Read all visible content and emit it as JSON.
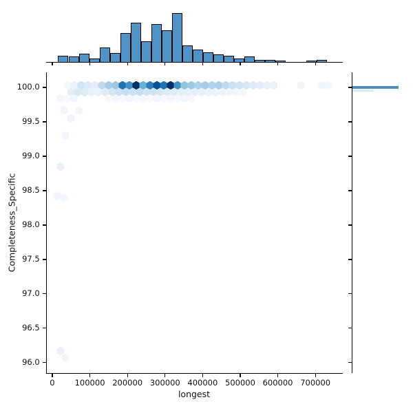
{
  "figure": {
    "background": "#ffffff",
    "xlabel": "longest",
    "ylabel": "Completeness_Specific"
  },
  "chart_data": {
    "type": "hexbin-joint",
    "title": "",
    "xlabel": "longest",
    "ylabel": "Completeness_Specific",
    "grid": false,
    "legend": "none",
    "colormap": "Blues",
    "xlim": [
      -17000,
      773000
    ],
    "ylim": [
      95.85,
      100.22
    ],
    "x_ticks": [
      0,
      100000,
      200000,
      300000,
      400000,
      500000,
      600000,
      700000
    ],
    "x_tick_labels": [
      "0",
      "100000",
      "200000",
      "300000",
      "400000",
      "500000",
      "600000",
      "700000"
    ],
    "y_ticks": [
      100.0,
      99.5,
      99.0,
      98.5,
      98.0,
      97.5,
      97.0,
      96.5,
      96.0
    ],
    "y_tick_labels": [
      "100.0",
      "99.5",
      "99.0",
      "98.5",
      "98.0",
      "97.5",
      "97.0",
      "96.5",
      "96.0"
    ],
    "hexes": [
      [
        40300,
        100.03,
        "#f3f8fd"
      ],
      [
        58600,
        100.03,
        "#e9f2fa"
      ],
      [
        76900,
        100.03,
        "#cfe3f3"
      ],
      [
        95200,
        100.03,
        "#dbeaf6"
      ],
      [
        113600,
        100.03,
        "#e4eef8"
      ],
      [
        131900,
        100.03,
        "#c3daee"
      ],
      [
        150200,
        100.03,
        "#a8cce6"
      ],
      [
        168500,
        100.03,
        "#9fc7e3"
      ],
      [
        186800,
        100.03,
        "#2171b5"
      ],
      [
        205100,
        100.03,
        "#4292c6"
      ],
      [
        223400,
        100.03,
        "#08306b"
      ],
      [
        241800,
        100.03,
        "#6baed6"
      ],
      [
        260100,
        100.03,
        "#2e7db9"
      ],
      [
        278400,
        100.03,
        "#08519c"
      ],
      [
        296700,
        100.03,
        "#2171b5"
      ],
      [
        315000,
        100.03,
        "#08306b"
      ],
      [
        333300,
        100.03,
        "#4292c6"
      ],
      [
        351600,
        100.03,
        "#93c4de"
      ],
      [
        370000,
        100.03,
        "#9ac9e4"
      ],
      [
        388300,
        100.03,
        "#aed1e9"
      ],
      [
        406600,
        100.03,
        "#a5cde7"
      ],
      [
        424900,
        100.03,
        "#b0d3ea"
      ],
      [
        443200,
        100.03,
        "#abd0e8"
      ],
      [
        461500,
        100.03,
        "#c0daef"
      ],
      [
        479800,
        100.03,
        "#cbe1f2"
      ],
      [
        498200,
        100.03,
        "#cfe3f3"
      ],
      [
        516500,
        100.03,
        "#d5e7f4"
      ],
      [
        534800,
        100.03,
        "#dcebf6"
      ],
      [
        553100,
        100.03,
        "#e2eef8"
      ],
      [
        571400,
        100.03,
        "#e7f1fa"
      ],
      [
        589700,
        100.03,
        "#e9f2fa"
      ],
      [
        661300,
        100.03,
        "#eef5fb"
      ],
      [
        716200,
        100.03,
        "#f0f6fc"
      ],
      [
        734600,
        100.03,
        "#f1f7fc"
      ],
      [
        49500,
        99.93,
        "#e4eff8"
      ],
      [
        67800,
        99.93,
        "#d9e8f5"
      ],
      [
        86100,
        99.93,
        "#dcebf6"
      ],
      [
        104400,
        99.93,
        "#e6f0f9"
      ],
      [
        122700,
        99.93,
        "#e9f2fa"
      ],
      [
        141100,
        99.93,
        "#dfecf7"
      ],
      [
        159400,
        99.93,
        "#d4e6f4"
      ],
      [
        177700,
        99.93,
        "#cce1f2"
      ],
      [
        196000,
        99.93,
        "#c9def0"
      ],
      [
        214300,
        99.93,
        "#cce1f2"
      ],
      [
        232600,
        99.93,
        "#c9def0"
      ],
      [
        251000,
        99.93,
        "#cfe3f3"
      ],
      [
        269300,
        99.93,
        "#d2e4f3"
      ],
      [
        287600,
        99.93,
        "#d7e7f5"
      ],
      [
        305900,
        99.93,
        "#dcebf6"
      ],
      [
        324200,
        99.93,
        "#dfecf7"
      ],
      [
        342500,
        99.93,
        "#e2eef8"
      ],
      [
        360900,
        99.93,
        "#e4eff8"
      ],
      [
        379200,
        99.93,
        "#e6f0f9"
      ],
      [
        397500,
        99.93,
        "#e9f2fa"
      ],
      [
        415800,
        99.93,
        "#ebf3fb"
      ],
      [
        434100,
        99.93,
        "#edf4fb"
      ],
      [
        452400,
        99.93,
        "#eef5fb"
      ],
      [
        470800,
        99.93,
        "#f0f6fc"
      ],
      [
        489100,
        99.93,
        "#f1f7fc"
      ],
      [
        507400,
        99.93,
        "#f4f8fd"
      ],
      [
        22000,
        99.84,
        "#f2f7fd"
      ],
      [
        40300,
        99.84,
        "#f5f9fd"
      ],
      [
        58600,
        99.84,
        "#f2f7fd"
      ],
      [
        150200,
        99.84,
        "#f5f9fd"
      ],
      [
        168500,
        99.84,
        "#f2f7fd"
      ],
      [
        186800,
        99.84,
        "#f5f9fd"
      ],
      [
        205100,
        99.84,
        "#f2f7fd"
      ],
      [
        223400,
        99.84,
        "#f5f9fd"
      ],
      [
        241800,
        99.84,
        "#f2f7fd"
      ],
      [
        260100,
        99.84,
        "#f5f9fd"
      ],
      [
        278400,
        99.84,
        "#f2f7fd"
      ],
      [
        296700,
        99.84,
        "#f5f9fd"
      ],
      [
        315000,
        99.84,
        "#f2f7fd"
      ],
      [
        333300,
        99.84,
        "#f5f9fd"
      ],
      [
        351600,
        99.84,
        "#f2f7fd"
      ],
      [
        370000,
        99.84,
        "#f5f9fd"
      ],
      [
        31200,
        99.67,
        "#edf4fb"
      ],
      [
        71500,
        99.66,
        "#f0f6fc"
      ],
      [
        49500,
        99.55,
        "#eef5fb"
      ],
      [
        34800,
        99.3,
        "#f1f7fc"
      ],
      [
        22000,
        98.85,
        "#e9f2fa"
      ],
      [
        12800,
        98.42,
        "#eef5fb"
      ],
      [
        31200,
        98.4,
        "#f1f7fc"
      ],
      [
        22000,
        96.17,
        "#eaf3fa"
      ],
      [
        34800,
        96.07,
        "#f0f6fc"
      ]
    ],
    "top_marginal": {
      "type": "histogram",
      "orientation": "vertical",
      "bin_start": 15600,
      "bin_width": 27480,
      "heights_rel": [
        9,
        8,
        12,
        5,
        21,
        13,
        42,
        57,
        30,
        55,
        46,
        71,
        24,
        18,
        14,
        11,
        9,
        5,
        8,
        3,
        3,
        2,
        0,
        0,
        2,
        3
      ],
      "fill_color": "#4f94c8",
      "edge_color": "#000000"
    },
    "right_marginal": {
      "type": "histogram",
      "orientation": "horizontal",
      "bars": [
        {
          "y": 100.0,
          "length_rel": 67,
          "thickness_px": 4,
          "color": "#4c8fc0"
        },
        {
          "y": 99.955,
          "length_rel": 31,
          "thickness_px": 3.5,
          "color": "#dce8f2"
        }
      ]
    }
  }
}
